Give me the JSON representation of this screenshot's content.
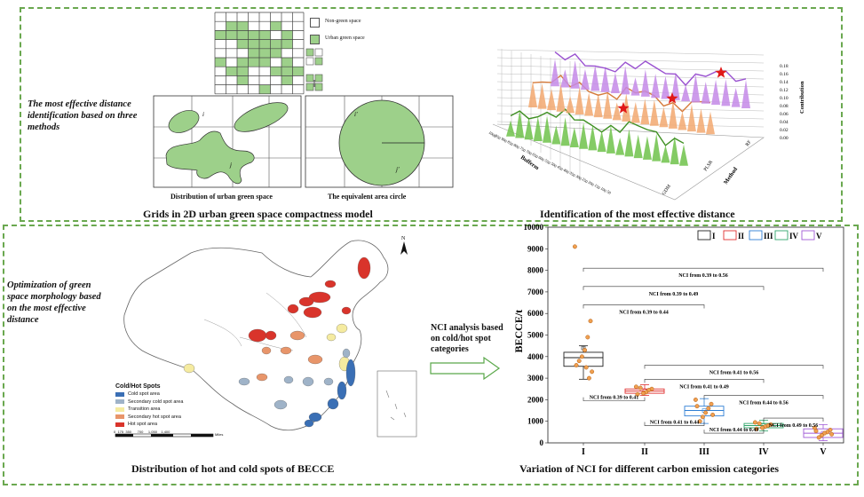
{
  "top": {
    "side_note": "The most effective distance identification based on three methods",
    "legend": {
      "non_green": "Non-green space",
      "urban_green": "Urban green space"
    },
    "sub_left": "Distribution of urban green space",
    "sub_right": "The equivalent area circle",
    "title_left": "Grids in 2D urban green space compactness model",
    "title_right": "Identification of the most effective distance",
    "labels": {
      "i": "i",
      "j": "j",
      "i2": "i'",
      "j2": "j'"
    },
    "plot3d": {
      "zlabel": "Contribution",
      "xlabel": "Bufferm",
      "ylabel": "Method",
      "methods": [
        "GDM",
        "PLSR",
        "RF"
      ],
      "z_ticks": [
        "0.18",
        "0.16",
        "0.14",
        "0.12",
        "0.10",
        "0.08",
        "0.06",
        "0.04",
        "0.02",
        "0.00"
      ],
      "buffer_ticks": [
        "1000",
        "950",
        "900",
        "850",
        "800",
        "750",
        "700",
        "650",
        "600",
        "550",
        "500",
        "450",
        "400",
        "350",
        "300",
        "250",
        "200",
        "150",
        "100",
        "50"
      ]
    }
  },
  "bottom": {
    "side_note": "Optimization of green space morphology based on the most effective distance",
    "arrow_label": "NCI analysis based on cold/hot spot categories",
    "map_title": "Distribution of hot and cold spots of BECCE",
    "chart_title": "Variation of NCI for different carbon emission categories",
    "north": "N",
    "map_legend": {
      "title": "Cold/Hot Spots",
      "items": [
        {
          "label": "Cold spot area",
          "color": "#3a6fb5"
        },
        {
          "label": "Secondary cold spot area",
          "color": "#9fb3c8"
        },
        {
          "label": "Transition area",
          "color": "#f5eba0"
        },
        {
          "label": "Secondary hot spot area",
          "color": "#e8956a"
        },
        {
          "label": "Hot spot area",
          "color": "#d9342b"
        }
      ],
      "scale": "0  175  350      700     1,050    1,400",
      "scale_unit": "Miles"
    }
  },
  "chart_data": {
    "type": "box",
    "ylabel": "BECCE/t",
    "ylim": [
      0,
      10000
    ],
    "yticks": [
      0,
      1000,
      2000,
      3000,
      4000,
      5000,
      6000,
      7000,
      8000,
      9000,
      10000
    ],
    "categories": [
      "I",
      "II",
      "III",
      "IV",
      "V"
    ],
    "legend": [
      "I",
      "II",
      "III",
      "IV",
      "V"
    ],
    "colors": [
      "#222222",
      "#e03030",
      "#2f7fd4",
      "#2fa66a",
      "#a05ad6"
    ],
    "boxes": [
      {
        "name": "I",
        "q1": 3550,
        "median": 3950,
        "q3": 4200,
        "whisker_low": 2950,
        "whisker_high": 4500,
        "mean": 4400
      },
      {
        "name": "II",
        "q1": 2300,
        "median": 2400,
        "q3": 2500,
        "whisker_low": 2200,
        "whisker_high": 2700,
        "mean": 2400
      },
      {
        "name": "III",
        "q1": 1250,
        "median": 1500,
        "q3": 1700,
        "whisker_low": 900,
        "whisker_high": 2050,
        "mean": 1500
      },
      {
        "name": "IV",
        "q1": 700,
        "median": 800,
        "q3": 900,
        "whisker_low": 550,
        "whisker_high": 1050,
        "mean": 800
      },
      {
        "name": "V",
        "q1": 250,
        "median": 450,
        "q3": 650,
        "whisker_low": 100,
        "whisker_high": 850,
        "mean": 450
      }
    ],
    "points": [
      {
        "cat": "I",
        "values": [
          9100,
          5650,
          4900,
          4300,
          4000,
          3800,
          3600,
          3300,
          3000,
          3500
        ]
      },
      {
        "cat": "II",
        "values": [
          2600,
          2500,
          2450,
          2350,
          2300,
          2550,
          2250
        ]
      },
      {
        "cat": "III",
        "values": [
          2000,
          1800,
          1600,
          1400,
          1200,
          1000,
          1700,
          1300
        ]
      },
      {
        "cat": "IV",
        "values": [
          950,
          850,
          800,
          750,
          700,
          900,
          650
        ]
      },
      {
        "cat": "V",
        "values": [
          700,
          600,
          500,
          450,
          350,
          250,
          550,
          400
        ]
      }
    ],
    "brackets": [
      {
        "from": "I",
        "to": "V",
        "label": "NCI from 0.39 to 0.56",
        "y": 8100
      },
      {
        "from": "I",
        "to": "IV",
        "label": "NCI from 0.39 to 0.49",
        "y": 7250
      },
      {
        "from": "I",
        "to": "III",
        "label": "NCI from 0.39 to 0.44",
        "y": 6400
      },
      {
        "from": "II",
        "to": "V",
        "label": "NCI from 0.41 to 0.56",
        "y": 3600
      },
      {
        "from": "II",
        "to": "IV",
        "label": "NCI from 0.41 to 0.49",
        "y": 2950
      },
      {
        "from": "III",
        "to": "V",
        "label": "NCI from 0.44 to 0.56",
        "y": 2200
      },
      {
        "from": "IV",
        "to": "V",
        "label": "NCI from 0.49 to 0.56",
        "y": 1150
      }
    ],
    "under_labels": [
      {
        "from": "I",
        "to": "II",
        "label": "NCI from 0.39 to 0.41",
        "y": 1950
      },
      {
        "from": "II",
        "to": "III",
        "label": "NCI from 0.41 to 0.44",
        "y": 800
      },
      {
        "from": "III",
        "to": "IV",
        "label": "NCI from 0.44 to 0.49",
        "y": 450
      }
    ]
  }
}
